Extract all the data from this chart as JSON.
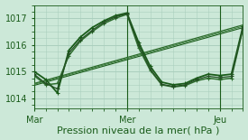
{
  "title": "",
  "xlabel": "Pression niveau de la mer( hPa )",
  "ylabel": "",
  "bg_color": "#cce8d8",
  "grid_color": "#aacfbe",
  "line_color_dark": "#1a5c1a",
  "xticks": [
    0,
    48,
    96
  ],
  "xtick_labels": [
    "Mar",
    "Mer",
    "Jeu"
  ],
  "yticks": [
    1014,
    1015,
    1016,
    1017
  ],
  "ylim": [
    1013.6,
    1017.5
  ],
  "xlim": [
    0,
    108
  ],
  "series_with_markers": [
    {
      "x": [
        0,
        6,
        12,
        18,
        24,
        30,
        36,
        42,
        48,
        54,
        60,
        66,
        72,
        78,
        84,
        90,
        96,
        102,
        108
      ],
      "y": [
        1015.0,
        1014.7,
        1014.2,
        1015.8,
        1016.3,
        1016.65,
        1016.9,
        1017.1,
        1017.2,
        1016.1,
        1015.2,
        1014.6,
        1014.5,
        1014.55,
        1014.75,
        1014.9,
        1014.85,
        1014.9,
        1016.7
      ],
      "color": "#1a5c1a",
      "lw": 1.3
    },
    {
      "x": [
        0,
        6,
        12,
        18,
        24,
        30,
        36,
        42,
        48,
        54,
        60,
        66,
        72,
        78,
        84,
        90,
        96,
        102,
        108
      ],
      "y": [
        1014.85,
        1014.5,
        1014.55,
        1015.6,
        1016.15,
        1016.5,
        1016.8,
        1017.0,
        1017.15,
        1015.9,
        1015.05,
        1014.5,
        1014.42,
        1014.47,
        1014.65,
        1014.75,
        1014.7,
        1014.75,
        1016.6
      ],
      "color": "#2e6e2e",
      "lw": 1.1
    },
    {
      "x": [
        0,
        6,
        12,
        18,
        24,
        30,
        36,
        42,
        48,
        54,
        60,
        66,
        72,
        78,
        84,
        90,
        96,
        102,
        108
      ],
      "y": [
        1014.9,
        1014.55,
        1014.35,
        1015.7,
        1016.2,
        1016.55,
        1016.85,
        1017.05,
        1017.18,
        1016.0,
        1015.1,
        1014.52,
        1014.44,
        1014.5,
        1014.7,
        1014.82,
        1014.77,
        1014.82,
        1016.65
      ],
      "color": "#245024",
      "lw": 0.9
    }
  ],
  "series_straight": [
    {
      "x": [
        0,
        108
      ],
      "y": [
        1014.55,
        1016.75
      ],
      "color": "#2a6a2a",
      "lw": 0.9
    },
    {
      "x": [
        0,
        108
      ],
      "y": [
        1014.48,
        1016.65
      ],
      "color": "#1a5c1a",
      "lw": 0.8
    },
    {
      "x": [
        0,
        108
      ],
      "y": [
        1014.52,
        1016.7
      ],
      "color": "#3a7a3a",
      "lw": 0.7
    }
  ],
  "vlines": [
    0,
    48,
    96
  ],
  "vline_color": "#1a5c1a",
  "tick_fontsize": 7,
  "label_fontsize": 8
}
